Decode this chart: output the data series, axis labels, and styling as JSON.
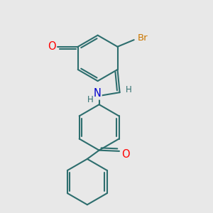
{
  "bg_color": "#e8e8e8",
  "bond_color": "#2d6e6e",
  "bond_width": 1.5,
  "atom_colors": {
    "O": "#ff0000",
    "N": "#0000cc",
    "Br": "#cc7700",
    "H": "#2d6e6e",
    "C": "#2d6e6e"
  },
  "font_size": 9.5
}
